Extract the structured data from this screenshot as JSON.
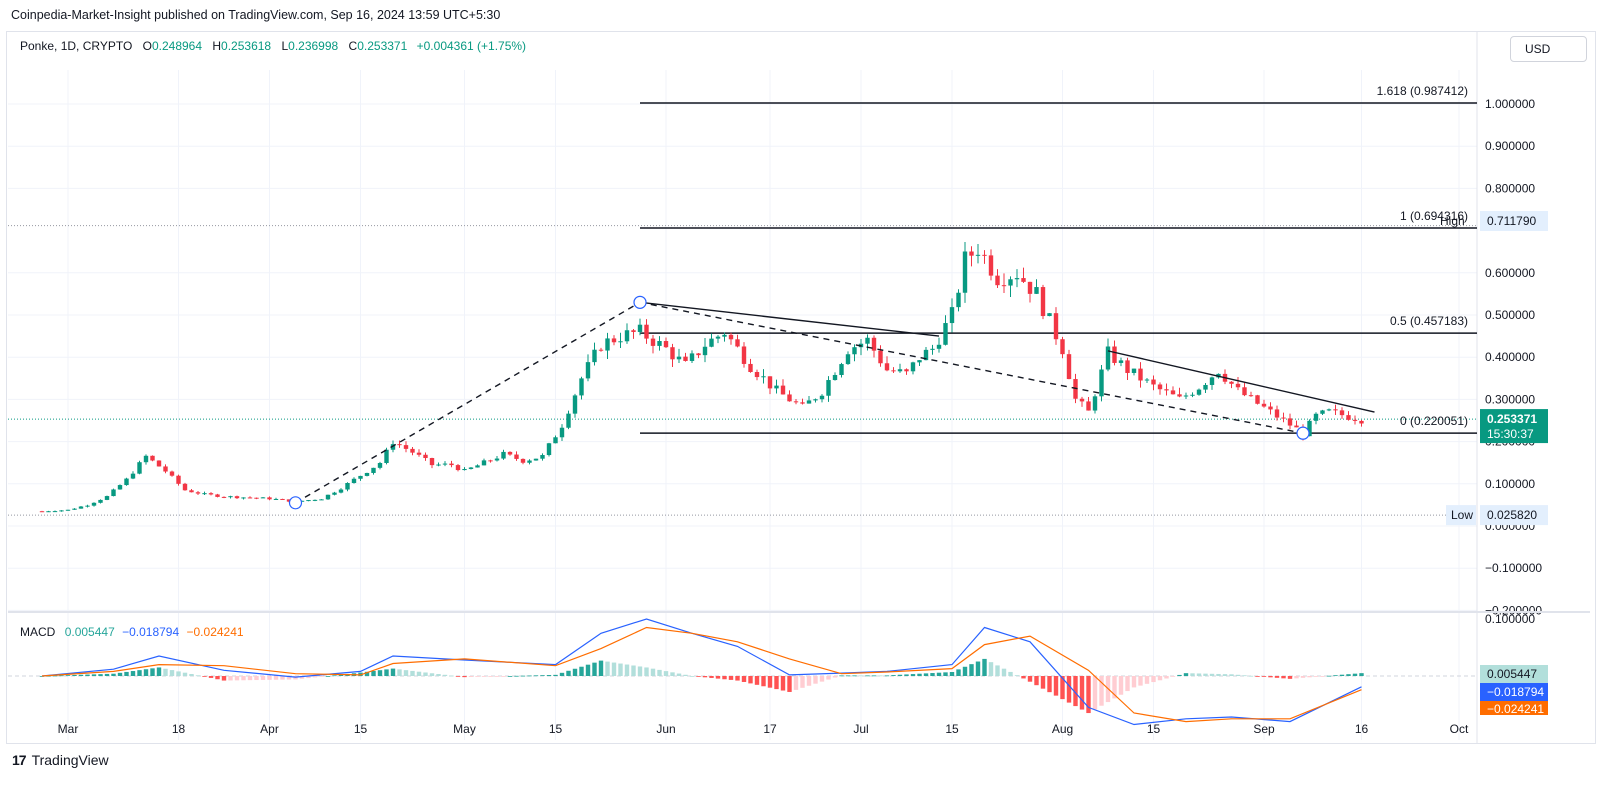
{
  "header": {
    "publisher": "Coinpedia-Market-Insight published on TradingView.com, Sep 16, 2024 13:59 UTC+5:30"
  },
  "legend": {
    "symbol": "Ponke, 1D, CRYPTO",
    "o_label": "O",
    "o_value": "0.248964",
    "h_label": "H",
    "h_value": "0.253618",
    "l_label": "L",
    "l_value": "0.236998",
    "c_label": "C",
    "c_value": "0.253371",
    "change": "+0.004361 (+1.75%)"
  },
  "currency_button": "USD",
  "macd_legend": {
    "label": "MACD",
    "hist": "0.005447",
    "macd": "−0.018794",
    "signal": "−0.024241"
  },
  "footer": {
    "brand": "TradingView"
  },
  "colors": {
    "up": "#089981",
    "down": "#f23645",
    "macd_line": "#2962ff",
    "signal_line": "#ff6d00"
  },
  "chart_data": {
    "type": "candlestick",
    "price_axis": {
      "ticks": [
        1.0,
        0.9,
        0.8,
        0.6,
        0.5,
        0.4,
        0.3,
        0.2,
        0.1,
        0.0,
        -0.1,
        -0.2
      ],
      "tick_labels": [
        "1.000000",
        "0.900000",
        "0.800000",
        "0.600000",
        "0.500000",
        "0.400000",
        "0.300000",
        "0.200000",
        "0.100000",
        "0.000000",
        "−0.100000",
        "−0.200000"
      ]
    },
    "time_axis": {
      "labels": [
        "Mar",
        "18",
        "Apr",
        "15",
        "May",
        "15",
        "Jun",
        "17",
        "Jul",
        "15",
        "Aug",
        "15",
        "Sep",
        "16",
        "Oct"
      ],
      "dates": [
        "2024-03-01",
        "2024-03-18",
        "2024-04-01",
        "2024-04-15",
        "2024-05-01",
        "2024-05-15",
        "2024-06-01",
        "2024-06-17",
        "2024-07-01",
        "2024-07-15",
        "2024-08-01",
        "2024-08-15",
        "2024-09-01",
        "2024-09-16",
        "2024-10-01"
      ]
    },
    "fib_levels": [
      {
        "ratio": "1.618",
        "price": 0.987412,
        "label": "1.618 (0.987412)"
      },
      {
        "ratio": "1",
        "price": 0.694316,
        "label": "1 (0.694316)"
      },
      {
        "ratio": "0.5",
        "price": 0.457183,
        "label": "0.5 (0.457183)"
      },
      {
        "ratio": "0",
        "price": 0.220051,
        "label": "0 (0.220051)"
      }
    ],
    "markers": {
      "high_label": "High",
      "high_value": "0.711790",
      "high": 0.71179,
      "low_label": "Low",
      "low_value": "0.025820",
      "low": 0.02582,
      "last_price_label": "0.253371",
      "last_price": 0.253371,
      "countdown": "15:30:37"
    },
    "trendlines": [
      {
        "style": "dashed",
        "from": [
          "2024-04-05",
          0.055
        ],
        "to": [
          "2024-05-28",
          0.53
        ]
      },
      {
        "style": "dashed",
        "from": [
          "2024-05-28",
          0.53
        ],
        "to": [
          "2024-09-07",
          0.22
        ]
      },
      {
        "style": "solid",
        "from": [
          "2024-05-28",
          0.53
        ],
        "to": [
          "2024-07-13",
          0.45
        ]
      },
      {
        "style": "solid",
        "from": [
          "2024-08-08",
          0.415
        ],
        "to": [
          "2024-09-18",
          0.27
        ]
      }
    ],
    "anchor_points": [
      [
        "2024-04-05",
        0.055
      ],
      [
        "2024-05-28",
        0.53
      ],
      [
        "2024-09-07",
        0.22
      ]
    ],
    "close_series": [
      [
        "2024-02-26",
        0.035
      ],
      [
        "2024-03-01",
        0.038
      ],
      [
        "2024-03-04",
        0.05
      ],
      [
        "2024-03-07",
        0.07
      ],
      [
        "2024-03-10",
        0.11
      ],
      [
        "2024-03-13",
        0.165
      ],
      [
        "2024-03-16",
        0.13
      ],
      [
        "2024-03-19",
        0.085
      ],
      [
        "2024-03-22",
        0.075
      ],
      [
        "2024-03-25",
        0.07
      ],
      [
        "2024-03-28",
        0.068
      ],
      [
        "2024-04-01",
        0.065
      ],
      [
        "2024-04-05",
        0.058
      ],
      [
        "2024-04-09",
        0.065
      ],
      [
        "2024-04-12",
        0.09
      ],
      [
        "2024-04-15",
        0.12
      ],
      [
        "2024-04-18",
        0.15
      ],
      [
        "2024-04-20",
        0.2
      ],
      [
        "2024-04-23",
        0.175
      ],
      [
        "2024-04-26",
        0.145
      ],
      [
        "2024-04-29",
        0.145
      ],
      [
        "2024-05-01",
        0.13
      ],
      [
        "2024-05-04",
        0.15
      ],
      [
        "2024-05-07",
        0.17
      ],
      [
        "2024-05-10",
        0.155
      ],
      [
        "2024-05-13",
        0.165
      ],
      [
        "2024-05-16",
        0.24
      ],
      [
        "2024-05-19",
        0.35
      ],
      [
        "2024-05-22",
        0.43
      ],
      [
        "2024-05-25",
        0.45
      ],
      [
        "2024-05-28",
        0.46
      ],
      [
        "2024-06-01",
        0.42
      ],
      [
        "2024-06-04",
        0.38
      ],
      [
        "2024-06-07",
        0.43
      ],
      [
        "2024-06-10",
        0.46
      ],
      [
        "2024-06-14",
        0.38
      ],
      [
        "2024-06-18",
        0.32
      ],
      [
        "2024-06-22",
        0.28
      ],
      [
        "2024-06-25",
        0.32
      ],
      [
        "2024-06-29",
        0.42
      ],
      [
        "2024-07-02",
        0.44
      ],
      [
        "2024-07-05",
        0.37
      ],
      [
        "2024-07-08",
        0.36
      ],
      [
        "2024-07-10",
        0.4
      ],
      [
        "2024-07-12",
        0.42
      ],
      [
        "2024-07-15",
        0.5
      ],
      [
        "2024-07-17",
        0.63
      ],
      [
        "2024-07-19",
        0.66
      ],
      [
        "2024-07-22",
        0.59
      ],
      [
        "2024-07-25",
        0.6
      ],
      [
        "2024-07-28",
        0.55
      ],
      [
        "2024-08-01",
        0.42
      ],
      [
        "2024-08-03",
        0.3
      ],
      [
        "2024-08-05",
        0.27
      ],
      [
        "2024-08-08",
        0.41
      ],
      [
        "2024-08-11",
        0.37
      ],
      [
        "2024-08-15",
        0.33
      ],
      [
        "2024-08-19",
        0.3
      ],
      [
        "2024-08-22",
        0.33
      ],
      [
        "2024-08-25",
        0.37
      ],
      [
        "2024-08-28",
        0.32
      ],
      [
        "2024-09-01",
        0.28
      ],
      [
        "2024-09-04",
        0.25
      ],
      [
        "2024-09-07",
        0.22
      ],
      [
        "2024-09-09",
        0.26
      ],
      [
        "2024-09-11",
        0.27
      ],
      [
        "2024-09-14",
        0.26
      ],
      [
        "2024-09-16",
        0.253
      ]
    ],
    "macd_axis": {
      "tick": 0.1,
      "tick_label": "0.100000"
    },
    "macd_markers": {
      "hist": "0.005447",
      "macd": "−0.018794",
      "signal": "−0.024241"
    },
    "macd_series": {
      "x": [
        "2024-02-26",
        "2024-03-08",
        "2024-03-15",
        "2024-03-25",
        "2024-04-05",
        "2024-04-15",
        "2024-04-20",
        "2024-05-01",
        "2024-05-15",
        "2024-05-22",
        "2024-05-29",
        "2024-06-05",
        "2024-06-12",
        "2024-06-20",
        "2024-06-28",
        "2024-07-05",
        "2024-07-15",
        "2024-07-20",
        "2024-07-27",
        "2024-08-05",
        "2024-08-12",
        "2024-08-20",
        "2024-08-27",
        "2024-09-05",
        "2024-09-16"
      ],
      "macd": [
        0,
        0.012,
        0.035,
        0.01,
        -0.002,
        0.008,
        0.035,
        0.028,
        0.02,
        0.075,
        0.1,
        0.075,
        0.052,
        0.002,
        0.005,
        0.008,
        0.02,
        0.085,
        0.06,
        -0.055,
        -0.085,
        -0.075,
        -0.072,
        -0.08,
        -0.019
      ],
      "signal": [
        0,
        0.008,
        0.02,
        0.018,
        0.004,
        0.002,
        0.022,
        0.03,
        0.018,
        0.048,
        0.085,
        0.075,
        0.06,
        0.03,
        0.004,
        0.007,
        0.013,
        0.055,
        0.07,
        0.01,
        -0.065,
        -0.08,
        -0.075,
        -0.075,
        -0.024
      ]
    }
  }
}
